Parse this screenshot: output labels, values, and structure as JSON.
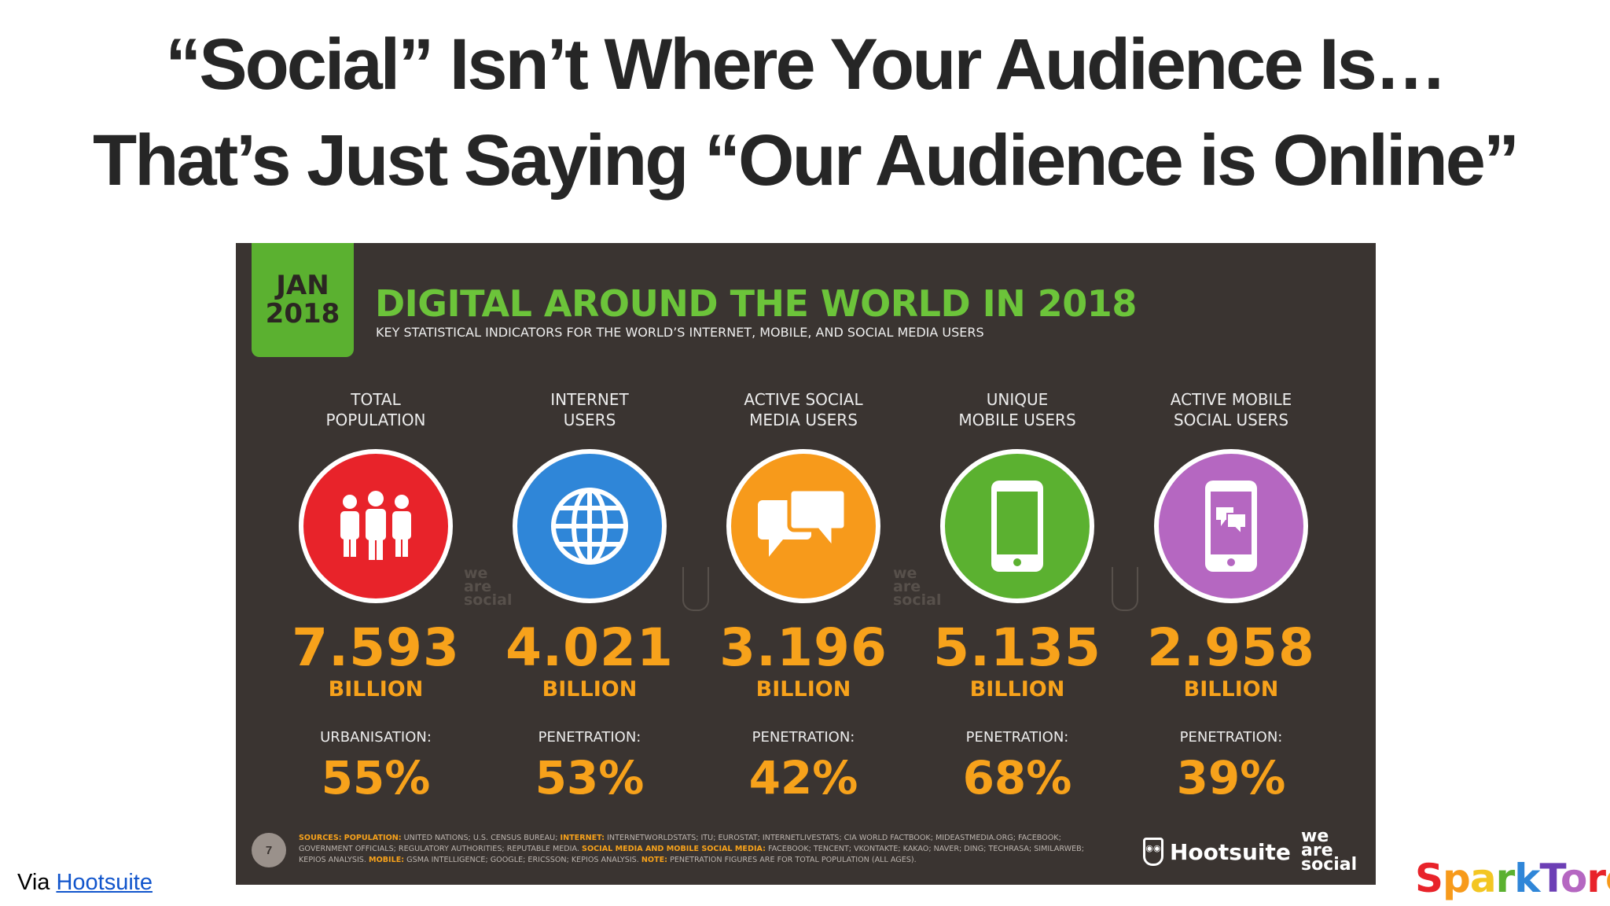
{
  "title": {
    "line1": "“Social” Isn’t Where Your Audience Is…",
    "line2": "That’s Just Saying “Our Audience is Online”"
  },
  "infographic": {
    "date_month": "JAN",
    "date_year": "2018",
    "heading": "DIGITAL AROUND THE WORLD IN 2018",
    "subheading": "KEY STATISTICAL INDICATORS FOR THE WORLD’S INTERNET, MOBILE, AND SOCIAL MEDIA USERS",
    "stats": [
      {
        "label_line1": "TOTAL",
        "label_line2": "POPULATION",
        "icon": "people-icon",
        "color": "#e8232a",
        "value": "7.593",
        "unit": "BILLION",
        "sublabel": "URBANISATION:",
        "pct": "55%"
      },
      {
        "label_line1": "INTERNET",
        "label_line2": "USERS",
        "icon": "globe-icon",
        "color": "#2f86d8",
        "value": "4.021",
        "unit": "BILLION",
        "sublabel": "PENETRATION:",
        "pct": "53%"
      },
      {
        "label_line1": "ACTIVE SOCIAL",
        "label_line2": "MEDIA USERS",
        "icon": "chat-bubbles-icon",
        "color": "#f79a1b",
        "value": "3.196",
        "unit": "BILLION",
        "sublabel": "PENETRATION:",
        "pct": "42%"
      },
      {
        "label_line1": "UNIQUE",
        "label_line2": "MOBILE USERS",
        "icon": "mobile-phone-icon",
        "color": "#5bb130",
        "value": "5.135",
        "unit": "BILLION",
        "sublabel": "PENETRATION:",
        "pct": "68%"
      },
      {
        "label_line1": "ACTIVE MOBILE",
        "label_line2": "SOCIAL USERS",
        "icon": "mobile-social-icon",
        "color": "#b567c1",
        "value": "2.958",
        "unit": "BILLION",
        "sublabel": "PENETRATION:",
        "pct": "39%"
      }
    ],
    "watermark_line1": "we",
    "watermark_line2": "are",
    "watermark_line3": "social",
    "page_number": "7",
    "sources": {
      "label": "SOURCES:",
      "k_population": "POPULATION:",
      "t_population": "UNITED NATIONS; U.S. CENSUS BUREAU;",
      "k_internet": "INTERNET:",
      "t_internet": "INTERNETWORLDSTATS; ITU; EUROSTAT; INTERNETLIVESTATS; CIA WORLD FACTBOOK; MIDEASTMEDIA.ORG; FACEBOOK; GOVERNMENT OFFICIALS; REGULATORY AUTHORITIES; REPUTABLE MEDIA.",
      "k_social": "SOCIAL MEDIA AND MOBILE SOCIAL MEDIA:",
      "t_social": "FACEBOOK; TENCENT; VKONTAKTE; KAKAO; NAVER; DING; TECHRASA; SIMILARWEB; KEPIOS ANALYSIS.",
      "k_mobile": "MOBILE:",
      "t_mobile": "GSMA INTELLIGENCE; GOOGLE; ERICSSON; KEPIOS ANALYSIS.",
      "k_note": "NOTE:",
      "t_note": "PENETRATION FIGURES ARE FOR TOTAL POPULATION (ALL AGES)."
    },
    "brand_hootsuite": "Hootsuite",
    "brand_was_line1": "we",
    "brand_was_line2": "are",
    "brand_was_line3": "social"
  },
  "footer": {
    "via_text": "Via",
    "via_link": "Hootsuite",
    "logo_letters": [
      "S",
      "p",
      "a",
      "r",
      "k",
      "T",
      "o",
      "r",
      "o"
    ],
    "logo_colors": [
      "#e8232a",
      "#f79a1b",
      "#f3c623",
      "#5bb130",
      "#2f86d8",
      "#6c3fb5",
      "#b567c1",
      "#e8232a",
      "#f79a1b"
    ]
  }
}
